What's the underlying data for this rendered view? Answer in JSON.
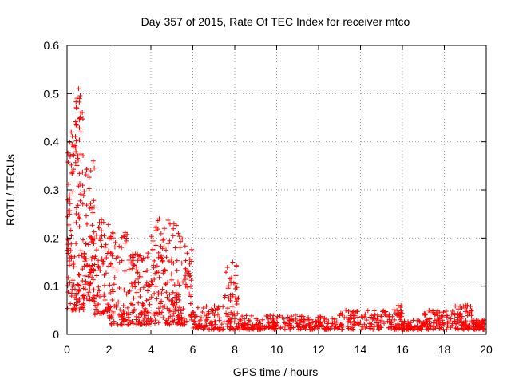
{
  "chart_data": {
    "type": "scatter",
    "title": "Day 357 of 2015, Rate Of TEC Index for receiver mtco",
    "xlabel": "GPS time / hours",
    "ylabel": "ROTI / TECUs",
    "xlim": [
      0,
      20
    ],
    "ylim": [
      0,
      0.6
    ],
    "grid": true,
    "marker": "plus",
    "point_color": "#ff0000",
    "xticks": [
      "0",
      "2",
      "4",
      "6",
      "8",
      "10",
      "12",
      "14",
      "16",
      "18",
      "20"
    ],
    "yticks": [
      "0",
      "0.1",
      "0.2",
      "0.3",
      "0.4",
      "0.5",
      "0.6"
    ],
    "envelope": [
      {
        "hour_from": 0.0,
        "hour_to": 0.4,
        "low": 0.05,
        "high": 0.42,
        "points": 70
      },
      {
        "hour_from": 0.4,
        "hour_to": 0.8,
        "low": 0.05,
        "high": 0.51,
        "points": 80
      },
      {
        "hour_from": 0.8,
        "hour_to": 1.3,
        "low": 0.07,
        "high": 0.36,
        "points": 80
      },
      {
        "hour_from": 1.3,
        "hour_to": 2.0,
        "low": 0.04,
        "high": 0.25,
        "points": 70
      },
      {
        "hour_from": 2.0,
        "hour_to": 3.0,
        "low": 0.02,
        "high": 0.22,
        "points": 90
      },
      {
        "hour_from": 3.0,
        "hour_to": 4.0,
        "low": 0.02,
        "high": 0.17,
        "points": 100
      },
      {
        "hour_from": 4.0,
        "hour_to": 5.0,
        "low": 0.02,
        "high": 0.24,
        "points": 100
      },
      {
        "hour_from": 5.0,
        "hour_to": 6.0,
        "low": 0.02,
        "high": 0.23,
        "points": 100
      },
      {
        "hour_from": 6.0,
        "hour_to": 7.5,
        "low": 0.01,
        "high": 0.06,
        "points": 90
      },
      {
        "hour_from": 7.5,
        "hour_to": 8.2,
        "low": 0.01,
        "high": 0.15,
        "points": 60
      },
      {
        "hour_from": 8.2,
        "hour_to": 10.0,
        "low": 0.01,
        "high": 0.04,
        "points": 100
      },
      {
        "hour_from": 10.0,
        "hour_to": 13.0,
        "low": 0.01,
        "high": 0.04,
        "points": 130
      },
      {
        "hour_from": 13.0,
        "hour_to": 15.5,
        "low": 0.01,
        "high": 0.05,
        "points": 110
      },
      {
        "hour_from": 15.5,
        "hour_to": 16.0,
        "low": 0.01,
        "high": 0.06,
        "points": 40
      },
      {
        "hour_from": 16.0,
        "hour_to": 17.0,
        "low": 0.01,
        "high": 0.03,
        "points": 60
      },
      {
        "hour_from": 17.0,
        "hour_to": 18.5,
        "low": 0.01,
        "high": 0.05,
        "points": 90
      },
      {
        "hour_from": 18.5,
        "hour_to": 19.4,
        "low": 0.01,
        "high": 0.06,
        "points": 70
      },
      {
        "hour_from": 19.4,
        "hour_to": 19.9,
        "low": 0.01,
        "high": 0.03,
        "points": 40
      }
    ],
    "notable_points": [
      {
        "x": 0.55,
        "y": 0.51
      },
      {
        "x": 0.6,
        "y": 0.49
      },
      {
        "x": 0.65,
        "y": 0.46
      },
      {
        "x": 0.2,
        "y": 0.42
      },
      {
        "x": 0.3,
        "y": 0.39
      },
      {
        "x": 1.25,
        "y": 0.36
      },
      {
        "x": 2.2,
        "y": 0.21
      },
      {
        "x": 4.4,
        "y": 0.24
      },
      {
        "x": 5.1,
        "y": 0.23
      },
      {
        "x": 7.9,
        "y": 0.15
      },
      {
        "x": 13.3,
        "y": 0.05
      },
      {
        "x": 15.8,
        "y": 0.06
      },
      {
        "x": 19.1,
        "y": 0.06
      }
    ]
  }
}
